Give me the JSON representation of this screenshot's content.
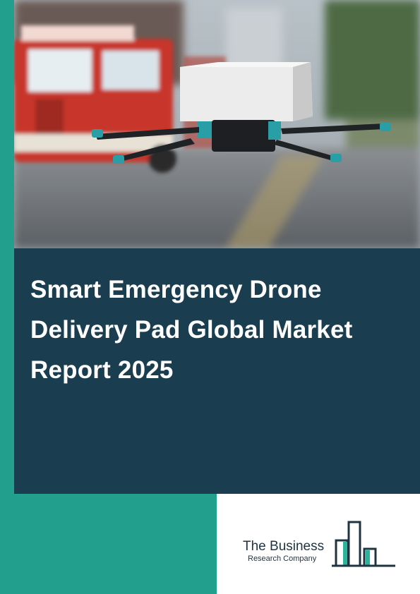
{
  "colors": {
    "teal": "#22a08d",
    "navy": "#1a3e50",
    "logo_text": "#1f3340",
    "logo_green": "#2bb39b"
  },
  "cover": {
    "image_icons": [
      "drone-icon",
      "fire-truck-icon"
    ],
    "title": "Smart Emergency Drone Delivery Pad Global Market Report 2025"
  },
  "logo": {
    "name": "The Business",
    "subtitle": "Research Company",
    "icon": "bar-chart-buildings-icon"
  }
}
